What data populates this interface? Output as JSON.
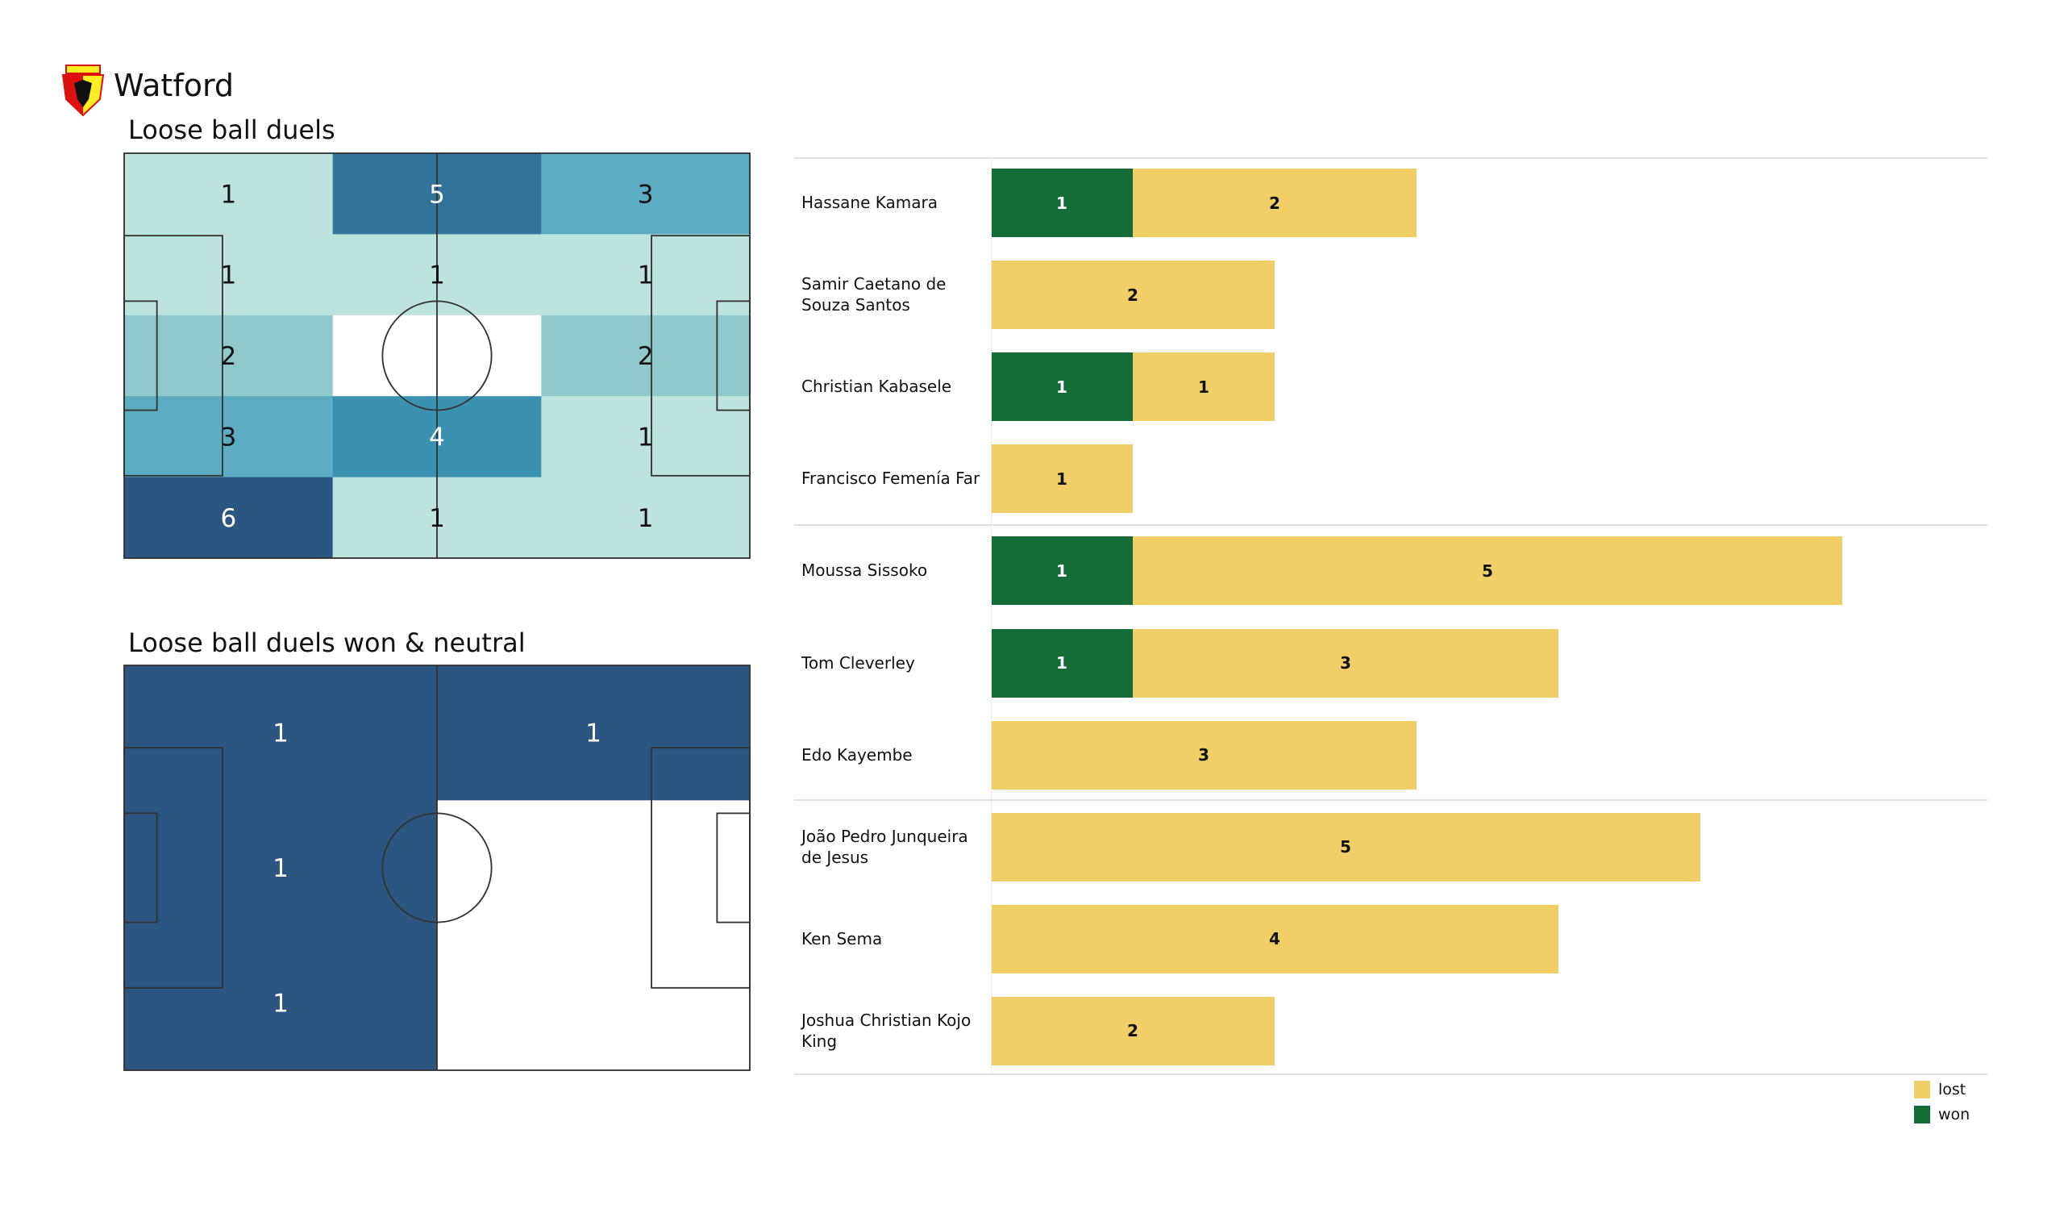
{
  "header": {
    "team": "Watford",
    "logo_text": "WATFORD"
  },
  "colors": {
    "won": "#146c36",
    "lost": "#f0cf66",
    "scale": [
      "#ffffff",
      "#bce4dc",
      "#8fc9cc",
      "#5dadc2",
      "#3a92b0",
      "#337399",
      "#2b5681"
    ]
  },
  "chart_data": [
    {
      "type": "heatmap",
      "title": "Loose ball duels",
      "rows": 5,
      "cols": 3,
      "values": [
        [
          1,
          5,
          3
        ],
        [
          1,
          1,
          1
        ],
        [
          2,
          0,
          2
        ],
        [
          3,
          4,
          1
        ],
        [
          6,
          1,
          1
        ]
      ]
    },
    {
      "type": "heatmap",
      "title": "Loose ball duels won & neutral",
      "rows": 3,
      "cols": 2,
      "values": [
        [
          1,
          1
        ],
        [
          1,
          0
        ],
        [
          1,
          0
        ]
      ]
    },
    {
      "type": "bar",
      "orientation": "horizontal",
      "stacked": true,
      "categories": [
        "Hassane Kamara",
        "Samir Caetano de Souza Santos",
        "Christian Kabasele",
        "Francisco Femenía Far",
        "Moussa Sissoko",
        "Tom Cleverley",
        "Edo Kayembe",
        "João Pedro Junqueira de Jesus",
        "Ken Sema",
        "Joshua Christian Kojo King"
      ],
      "display_labels": [
        "Hassane Kamara",
        "Samir Caetano de\nSouza Santos",
        "Christian Kabasele",
        "Francisco Femenía Far",
        "Moussa Sissoko",
        "Tom Cleverley",
        "Edo Kayembe",
        "João Pedro Junqueira\nde Jesus",
        "Ken Sema",
        "Joshua Christian Kojo\nKing"
      ],
      "series": [
        {
          "name": "won",
          "values": [
            1,
            0,
            1,
            0,
            1,
            1,
            0,
            0,
            0,
            0
          ]
        },
        {
          "name": "lost",
          "values": [
            2,
            2,
            1,
            1,
            5,
            3,
            3,
            5,
            4,
            2
          ]
        }
      ],
      "groups_after": [
        3,
        6
      ],
      "legend": [
        "lost",
        "won"
      ],
      "legend_position": "bottom-right"
    }
  ]
}
